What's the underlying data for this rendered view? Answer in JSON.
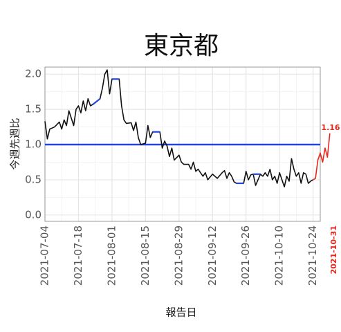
{
  "chart_data": {
    "type": "line",
    "title": "東京都",
    "ylabel": "今週先週比",
    "xlabel": "報告日",
    "xlim": [
      "2021-07-04",
      "2021-10-27"
    ],
    "ylim": [
      -0.09,
      2.1
    ],
    "xticks": [
      "2021-07-04",
      "2021-07-18",
      "2021-08-01",
      "2021-08-15",
      "2021-08-29",
      "2021-09-12",
      "2021-09-26",
      "2021-10-10",
      "2021-10-24"
    ],
    "yticks": [
      {
        "value": 0,
        "label": "0.0"
      },
      0.5,
      {
        "value": 1,
        "label": "1.0"
      },
      1.5,
      {
        "value": 2,
        "label": "2.0"
      }
    ],
    "grid": true,
    "hline": {
      "value": 1,
      "color": "#2244dd"
    },
    "series": [
      {
        "color": "#111111",
        "x": [
          "2021-07-04",
          "2021-07-05",
          "2021-07-06",
          "2021-07-08",
          "2021-07-10",
          "2021-07-11",
          "2021-07-12",
          "2021-07-13",
          "2021-07-14",
          "2021-07-16",
          "2021-07-17",
          "2021-07-18",
          "2021-07-19",
          "2021-07-20",
          "2021-07-21",
          "2021-07-22",
          "2021-07-23",
          "2021-07-24",
          "2021-07-27",
          "2021-07-28",
          "2021-07-29",
          "2021-07-30",
          "2021-07-31",
          "2021-08-01",
          "2021-08-04",
          "2021-08-05",
          "2021-08-06",
          "2021-08-07",
          "2021-08-09",
          "2021-08-10",
          "2021-08-11",
          "2021-08-12",
          "2021-08-13",
          "2021-08-15",
          "2021-08-16",
          "2021-08-17",
          "2021-08-18",
          "2021-08-21",
          "2021-08-22",
          "2021-08-23",
          "2021-08-24",
          "2021-08-25",
          "2021-08-26",
          "2021-08-27",
          "2021-08-29",
          "2021-08-30",
          "2021-08-31",
          "2021-09-02",
          "2021-09-03",
          "2021-09-04",
          "2021-09-05",
          "2021-09-06",
          "2021-09-08",
          "2021-09-09",
          "2021-09-10",
          "2021-09-12",
          "2021-09-14",
          "2021-09-16",
          "2021-09-17",
          "2021-09-18",
          "2021-09-19",
          "2021-09-20",
          "2021-09-21",
          "2021-09-22",
          "2021-09-25",
          "2021-09-26",
          "2021-09-27",
          "2021-09-28",
          "2021-09-29",
          "2021-09-30",
          "2021-10-02",
          "2021-10-03",
          "2021-10-04",
          "2021-10-05",
          "2021-10-06",
          "2021-10-07",
          "2021-10-08",
          "2021-10-09",
          "2021-10-10",
          "2021-10-12",
          "2021-10-13",
          "2021-10-14",
          "2021-10-15",
          "2021-10-16",
          "2021-10-17",
          "2021-10-18",
          "2021-10-19",
          "2021-10-20",
          "2021-10-21",
          "2021-10-22",
          "2021-10-23",
          "2021-10-24"
        ],
        "values": [
          1.33,
          1.08,
          1.22,
          1.25,
          1.32,
          1.22,
          1.35,
          1.27,
          1.48,
          1.27,
          1.5,
          1.55,
          1.45,
          1.62,
          1.48,
          1.65,
          1.55,
          1.57,
          1.65,
          1.8,
          2.0,
          2.06,
          1.72,
          1.93,
          1.93,
          1.55,
          1.35,
          1.3,
          1.31,
          1.2,
          1.32,
          1.1,
          1.0,
          1.02,
          1.27,
          1.1,
          1.18,
          1.18,
          0.95,
          1.05,
          0.98,
          0.83,
          0.95,
          0.78,
          0.85,
          0.75,
          0.72,
          0.72,
          0.65,
          0.75,
          0.62,
          0.65,
          0.55,
          0.6,
          0.5,
          0.58,
          0.52,
          0.6,
          0.63,
          0.52,
          0.6,
          0.55,
          0.47,
          0.45,
          0.45,
          0.62,
          0.5,
          0.57,
          0.58,
          0.42,
          0.58,
          0.55,
          0.6,
          0.55,
          0.65,
          0.5,
          0.55,
          0.45,
          0.6,
          0.4,
          0.55,
          0.48,
          0.8,
          0.65,
          0.55,
          0.6,
          0.45,
          0.6,
          0.58,
          0.45,
          0.48,
          0.5
        ]
      },
      {
        "color": "#2244dd",
        "x": [
          "2021-07-24",
          "2021-07-27",
          "2021-07-29",
          "2021-08-01",
          "2021-08-04",
          "2021-08-10",
          "2021-08-18",
          "2021-08-21",
          "2021-09-08",
          "2021-09-22",
          "2021-09-25",
          "2021-09-27",
          "2021-09-29",
          "2021-10-02"
        ],
        "values": [
          1.57,
          1.65,
          null,
          1.93,
          1.93,
          null,
          1.18,
          1.18,
          null,
          0.45,
          0.45,
          null,
          0.58,
          0.58
        ]
      },
      {
        "color": "#e8261c",
        "x": [
          "2021-10-24",
          "2021-10-25",
          "2021-10-26",
          "2021-10-27",
          "2021-10-28",
          "2021-10-29",
          "2021-10-30",
          "2021-10-31"
        ],
        "values": [
          0.5,
          0.52,
          0.78,
          0.88,
          0.75,
          0.95,
          0.82,
          1.16
        ]
      }
    ],
    "annotations": [
      {
        "text": "1.16",
        "color": "#e8261c"
      },
      {
        "text": "2021-10-31",
        "color": "#e8261c"
      }
    ]
  }
}
